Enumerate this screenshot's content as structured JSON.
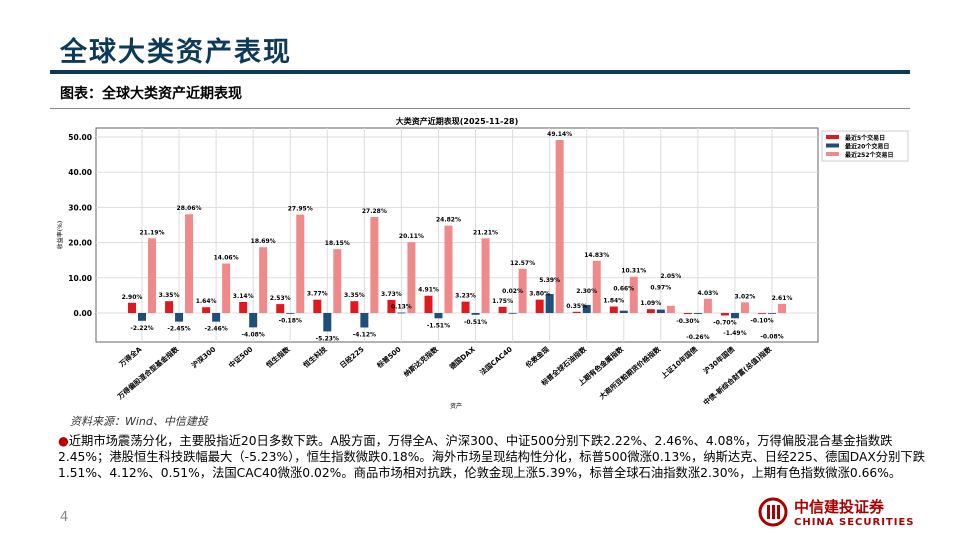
{
  "header": {
    "title": "全球大类资产表现",
    "subtitle": "图表：全球大类资产近期表现"
  },
  "chart_data": {
    "type": "bar",
    "title": "大类资产近期表现(2025-11-28)",
    "xlabel": "资产",
    "ylabel": "收益率(%)",
    "ylim": [
      -10,
      50
    ],
    "yticks": [
      "0.00",
      "10.00",
      "20.00",
      "30.00",
      "40.00",
      "50.00"
    ],
    "grid": true,
    "legend_position": "top-right",
    "categories": [
      "万得全A",
      "万得偏股混合型基金指数",
      "沪深300",
      "中证500",
      "恒生指数",
      "恒生科技",
      "日经225",
      "标普500",
      "纳斯达克指数",
      "德国DAX",
      "法国CAC40",
      "伦敦金现",
      "标普全球石油指数",
      "上期有色金属指数",
      "大商所豆粕期货价格指数",
      "上证10年国债",
      "沪30年国债",
      "中债-新综合财富(总值)指数"
    ],
    "series": [
      {
        "name": "最近5个交易日",
        "color": "#e0191e",
        "values": [
          2.9,
          3.35,
          1.64,
          3.14,
          2.53,
          3.77,
          3.35,
          3.73,
          4.91,
          3.23,
          1.75,
          3.8,
          0.35,
          1.84,
          1.09,
          -0.3,
          -0.7,
          -0.1
        ]
      },
      {
        "name": "最近20个交易日",
        "color": "#1f4e79",
        "values": [
          -2.22,
          -2.45,
          -2.46,
          -4.08,
          -0.18,
          -5.23,
          -4.12,
          0.13,
          -1.51,
          -0.51,
          0.02,
          5.39,
          2.3,
          0.66,
          0.97,
          -0.26,
          -1.49,
          -0.08
        ]
      },
      {
        "name": "最近252个交易日",
        "color": "#f08a8a",
        "values": [
          21.19,
          28.06,
          14.06,
          18.69,
          27.95,
          18.15,
          27.28,
          20.11,
          24.82,
          21.21,
          12.57,
          49.14,
          14.83,
          10.31,
          2.05,
          4.03,
          3.02,
          2.61
        ]
      }
    ]
  },
  "source": "资料来源：Wind、中信建投",
  "note": "近期市场震荡分化，主要股指近20日多数下跌。A股方面，万得全A、沪深300、中证500分别下跌2.22%、2.46%、4.08%，万得偏股混合基金指数跌2.45%；港股恒生科技跌幅最大（-5.23%），恒生指数微跌0.18%。海外市场呈现结构性分化，标普500微涨0.13%，纳斯达克、日经225、德国DAX分别下跌1.51%、4.12%、0.51%，法国CAC40微涨0.02%。商品市场相对抗跌，伦敦金现上涨5.39%，标普全球石油指数涨2.30%，上期有色指数微涨0.66%。",
  "page_number": "4",
  "logo": {
    "cn": "中信建投证券",
    "en": "CHINA SECURITIES"
  }
}
